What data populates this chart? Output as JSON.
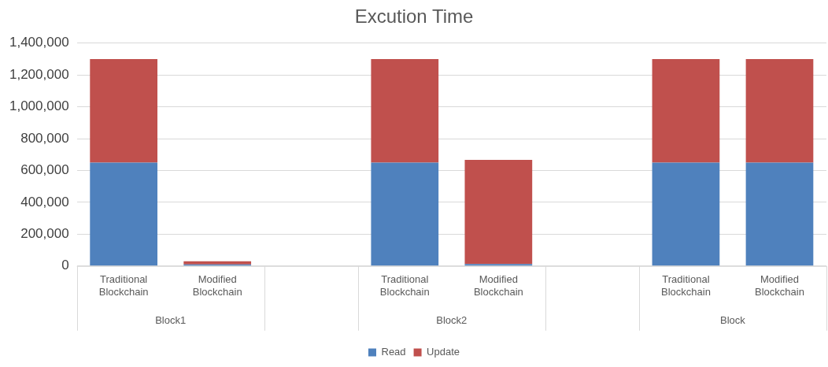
{
  "chart_data": {
    "type": "bar",
    "title": "Excution Time",
    "stacked": true,
    "categories": [
      "Traditional Blockchain",
      "Modified Blockchain",
      null,
      "Traditional Blockchain",
      "Modified Blockchain",
      null,
      "Traditional Blockchain",
      "Modified Blockchain"
    ],
    "series": [
      {
        "name": "Read",
        "color": "#4f81bd",
        "values": [
          650000,
          10000,
          null,
          650000,
          12000,
          null,
          650000,
          650000
        ]
      },
      {
        "name": "Update",
        "color": "#c0504d",
        "values": [
          650000,
          20000,
          null,
          650000,
          655000,
          null,
          650000,
          650000
        ]
      }
    ],
    "annotations": [
      "Block1",
      "Block2",
      "Block"
    ],
    "ylim": [
      0,
      1400000
    ],
    "yticks": [
      0,
      {
        "value": 200000,
        "label": "200,000"
      },
      {
        "value": 400000,
        "label": "400,000"
      },
      {
        "value": 600000,
        "label": "600,000"
      },
      {
        "value": 800000,
        "label": "800,000"
      },
      {
        "value": 1000000,
        "label": "1,000,000"
      },
      {
        "value": 1200000,
        "label": "1,200,000"
      },
      {
        "value": 1400000,
        "label": "1,400,000"
      }
    ],
    "grid": "y",
    "legend": "bottom"
  }
}
